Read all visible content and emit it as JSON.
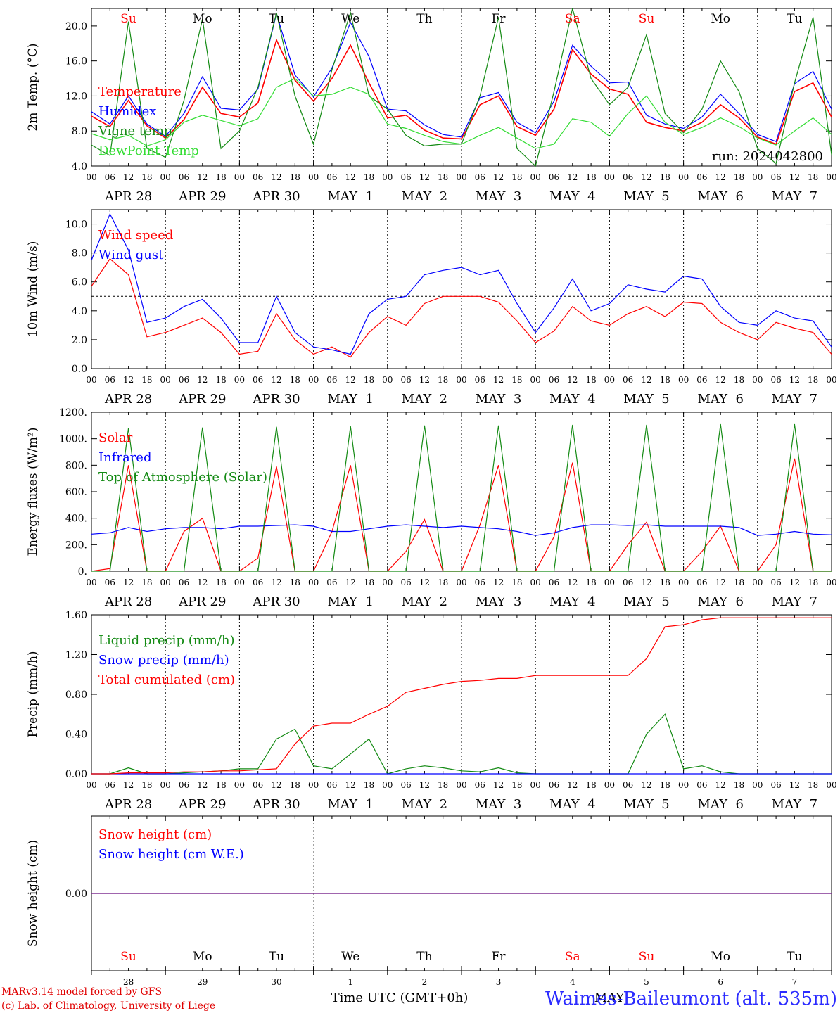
{
  "colors": {
    "temperature": "#ff0000",
    "vigne": "#138a13",
    "humidex": "#0000ff",
    "dewpoint": "#33dd33",
    "weekend": "#ff0000",
    "weekday": "#000000",
    "snow_line": "#7b2a8f"
  },
  "chart_data": [
    {
      "type": "line",
      "ylabel": "2m Temp. (°C)",
      "ylim": [
        4,
        22
      ],
      "yticks": [
        "4.0",
        "8.0",
        "12.0",
        "16.0",
        "20.0"
      ],
      "annotation": "run: 2024042800",
      "day_labels": [
        "Su",
        "Mo",
        "Tu",
        "We",
        "Th",
        "Fr",
        "Sa",
        "Su",
        "Mo",
        "Tu"
      ],
      "x_hours": [
        0,
        6,
        12,
        18,
        24,
        30,
        36,
        42,
        48,
        54,
        60,
        66,
        72,
        78,
        84,
        90,
        96,
        102,
        108,
        114,
        120,
        126,
        132,
        138,
        144,
        150,
        156,
        162,
        168,
        174,
        180,
        186,
        192,
        198,
        204,
        210,
        216,
        222,
        228,
        234,
        240
      ],
      "series": [
        {
          "name": "Temperature",
          "color": "#ff0000",
          "values": [
            9.7,
            8.5,
            11.5,
            8.6,
            7.2,
            9.3,
            13.0,
            10.0,
            9.6,
            11.2,
            18.4,
            13.8,
            11.4,
            14.0,
            17.8,
            13.5,
            9.5,
            9.8,
            8.1,
            7.2,
            7.1,
            11.0,
            12.0,
            8.5,
            7.5,
            10.5,
            17.3,
            14.5,
            12.8,
            12.2,
            9.0,
            8.4,
            8.0,
            9.0,
            11.0,
            9.5,
            7.3,
            6.5,
            12.5,
            13.5,
            9.6
          ]
        },
        {
          "name": "Humidex",
          "color": "#0000ff",
          "values": [
            10.2,
            8.8,
            12.0,
            8.8,
            7.4,
            10.0,
            14.2,
            10.6,
            10.4,
            12.8,
            21.4,
            14.4,
            11.9,
            15.2,
            20.4,
            16.5,
            10.5,
            10.3,
            8.7,
            7.6,
            7.3,
            11.8,
            12.4,
            9.0,
            7.8,
            11.4,
            17.8,
            15.4,
            13.5,
            13.6,
            9.8,
            8.8,
            8.3,
            9.6,
            12.2,
            10.0,
            7.6,
            6.8,
            13.4,
            14.8,
            10.5
          ]
        },
        {
          "name": "Vigne temp",
          "color": "#138a13",
          "values": [
            6.4,
            5.2,
            20.5,
            6.0,
            5.0,
            11.5,
            20.8,
            6.0,
            8.0,
            13.0,
            21.5,
            12.0,
            6.5,
            15.0,
            21.5,
            12.0,
            10.5,
            7.5,
            6.3,
            6.5,
            6.5,
            12.0,
            21.0,
            6.0,
            3.5,
            12.5,
            22.0,
            14.0,
            11.0,
            13.0,
            19.0,
            10.0,
            7.8,
            10.5,
            16.0,
            12.5,
            6.0,
            4.3,
            13.5,
            21.0,
            5.3
          ]
        },
        {
          "name": "DewPoint Temp",
          "color": "#33dd33",
          "values": [
            7.7,
            7.0,
            7.5,
            6.3,
            7.0,
            9.0,
            9.8,
            9.2,
            8.6,
            9.4,
            13.0,
            14.0,
            12.0,
            12.2,
            13.0,
            12.2,
            8.8,
            8.3,
            7.5,
            6.8,
            6.5,
            7.5,
            8.4,
            7.2,
            6.0,
            6.5,
            9.4,
            9.0,
            7.4,
            10.0,
            12.0,
            9.0,
            7.6,
            8.4,
            9.5,
            8.5,
            7.2,
            6.4,
            8.0,
            9.5,
            7.6
          ]
        }
      ]
    },
    {
      "type": "line",
      "ylabel": "10m Wind (m/s)",
      "ylim": [
        0,
        11
      ],
      "yticks": [
        "0.0",
        "2.0",
        "4.0",
        "6.0",
        "8.0",
        "10.0"
      ],
      "reference_line": 5,
      "x_hours": [
        0,
        6,
        12,
        18,
        24,
        30,
        36,
        42,
        48,
        54,
        60,
        66,
        72,
        78,
        84,
        90,
        96,
        102,
        108,
        114,
        120,
        126,
        132,
        138,
        144,
        150,
        156,
        162,
        168,
        174,
        180,
        186,
        192,
        198,
        204,
        210,
        216,
        222,
        228,
        234,
        240
      ],
      "series": [
        {
          "name": "Wind speed",
          "color": "#ff0000",
          "values": [
            5.7,
            7.6,
            6.5,
            2.2,
            2.5,
            3.0,
            3.5,
            2.5,
            1.0,
            1.2,
            3.8,
            2.0,
            1.0,
            1.5,
            0.8,
            2.5,
            3.6,
            3.0,
            4.5,
            5.0,
            5.0,
            5.0,
            4.6,
            3.3,
            1.8,
            2.6,
            4.3,
            3.3,
            3.0,
            3.8,
            4.3,
            3.6,
            4.6,
            4.5,
            3.2,
            2.5,
            2.0,
            3.2,
            2.8,
            2.5,
            1.0
          ]
        },
        {
          "name": "Wind gust",
          "color": "#0000ff",
          "values": [
            7.5,
            10.7,
            8.2,
            3.2,
            3.5,
            4.3,
            4.8,
            3.5,
            1.8,
            1.8,
            5.0,
            2.5,
            1.5,
            1.3,
            1.0,
            3.8,
            4.8,
            5.0,
            6.5,
            6.8,
            7.0,
            6.5,
            6.8,
            4.5,
            2.5,
            4.2,
            6.2,
            4.0,
            4.5,
            5.8,
            5.5,
            5.3,
            6.4,
            6.2,
            4.3,
            3.2,
            3.0,
            4.0,
            3.5,
            3.3,
            1.5
          ]
        }
      ]
    },
    {
      "type": "line",
      "ylabel": "Energy fluxes (W/m²)",
      "ylim": [
        0,
        1200
      ],
      "yticks": [
        "0.",
        "200.",
        "400.",
        "600.",
        "800.",
        "1000.",
        "1200."
      ],
      "x_hours": [
        0,
        6,
        12,
        18,
        24,
        30,
        36,
        42,
        48,
        54,
        60,
        66,
        72,
        78,
        84,
        90,
        96,
        102,
        108,
        114,
        120,
        126,
        132,
        138,
        144,
        150,
        156,
        162,
        168,
        174,
        180,
        186,
        192,
        198,
        204,
        210,
        216,
        222,
        228,
        234,
        240
      ],
      "series": [
        {
          "name": "Solar",
          "color": "#ff0000",
          "values": [
            0,
            20,
            800,
            0,
            0,
            300,
            400,
            0,
            0,
            100,
            790,
            0,
            0,
            300,
            800,
            0,
            0,
            150,
            390,
            0,
            0,
            350,
            800,
            0,
            0,
            260,
            820,
            0,
            0,
            200,
            370,
            0,
            0,
            150,
            340,
            0,
            0,
            200,
            850,
            0,
            0
          ]
        },
        {
          "name": "Infrared",
          "color": "#0000ff",
          "values": [
            280,
            290,
            330,
            300,
            320,
            330,
            330,
            320,
            340,
            340,
            345,
            350,
            340,
            300,
            300,
            320,
            340,
            350,
            340,
            330,
            340,
            330,
            320,
            300,
            270,
            290,
            330,
            350,
            350,
            345,
            350,
            340,
            340,
            340,
            340,
            330,
            270,
            280,
            300,
            280,
            275
          ]
        },
        {
          "name": "Top of Atmosphere (Solar)",
          "color": "#138a13",
          "values": [
            0,
            0,
            1080,
            0,
            0,
            0,
            1085,
            0,
            0,
            0,
            1090,
            0,
            0,
            0,
            1095,
            0,
            0,
            0,
            1100,
            0,
            0,
            0,
            1100,
            0,
            0,
            0,
            1105,
            0,
            0,
            0,
            1105,
            0,
            0,
            0,
            1110,
            0,
            0,
            0,
            1110,
            0,
            0
          ]
        }
      ]
    },
    {
      "type": "line",
      "ylabel": "Precip (mm/h)",
      "ylim": [
        0,
        1.6
      ],
      "yticks": [
        "0.00",
        "0.40",
        "0.80",
        "1.20",
        "1.60"
      ],
      "x_hours": [
        0,
        6,
        12,
        18,
        24,
        30,
        36,
        42,
        48,
        54,
        60,
        66,
        72,
        78,
        84,
        90,
        96,
        102,
        108,
        114,
        120,
        126,
        132,
        138,
        144,
        150,
        156,
        162,
        168,
        174,
        180,
        186,
        192,
        198,
        204,
        210,
        216,
        222,
        228,
        234,
        240
      ],
      "series": [
        {
          "name": "Liquid precip (mm/h)",
          "color": "#138a13",
          "values": [
            0,
            0,
            0.06,
            0,
            0,
            0.01,
            0.02,
            0.03,
            0.05,
            0.05,
            0.35,
            0.45,
            0.08,
            0.05,
            0.2,
            0.35,
            0,
            0.05,
            0.08,
            0.06,
            0.03,
            0.02,
            0.06,
            0.01,
            0,
            0,
            0,
            0,
            0,
            0,
            0.4,
            0.6,
            0.05,
            0.08,
            0.02,
            0,
            0,
            0,
            0,
            0,
            0
          ]
        },
        {
          "name": "Snow precip (mm/h)",
          "color": "#0000ff",
          "values": [
            0,
            0,
            0,
            0,
            0,
            0,
            0,
            0,
            0,
            0,
            0,
            0,
            0,
            0,
            0,
            0,
            0,
            0,
            0,
            0,
            0,
            0,
            0,
            0,
            0,
            0,
            0,
            0,
            0,
            0,
            0,
            0,
            0,
            0,
            0,
            0,
            0,
            0,
            0,
            0,
            0
          ]
        },
        {
          "name": "Total cumulated (cm)",
          "color": "#ff0000",
          "values": [
            0,
            0,
            0.01,
            0.01,
            0.01,
            0.02,
            0.02,
            0.03,
            0.03,
            0.04,
            0.05,
            0.3,
            0.48,
            0.51,
            0.51,
            0.6,
            0.68,
            0.82,
            0.86,
            0.9,
            0.93,
            0.94,
            0.96,
            0.96,
            0.99,
            0.99,
            0.99,
            0.99,
            0.99,
            0.99,
            1.16,
            1.48,
            1.5,
            1.55,
            1.57,
            1.57,
            1.57,
            1.57,
            1.57,
            1.57,
            1.57
          ]
        }
      ]
    },
    {
      "type": "line",
      "ylabel": "Snow height (cm)",
      "ylim": [
        -1,
        1
      ],
      "yticks": [
        "0.00"
      ],
      "x_hours": [
        0,
        240
      ],
      "series": [
        {
          "name": "Snow height (cm)",
          "color": "#ff0000",
          "values": [
            0,
            0
          ]
        },
        {
          "name": "Snow height (cm W.E.)",
          "color": "#0000ff",
          "values": [
            0,
            0
          ]
        }
      ]
    }
  ],
  "x_axis": {
    "hour_labels": [
      "00",
      "06",
      "12",
      "18"
    ],
    "date_labels": [
      "APR 28",
      "APR 29",
      "APR 30",
      "MAY  1",
      "MAY  2",
      "MAY  3",
      "MAY  4",
      "MAY  5",
      "MAY  6",
      "MAY  7"
    ],
    "bottom_day_labels": [
      "Su",
      "Mo",
      "Tu",
      "We",
      "Th",
      "Fr",
      "Sa",
      "Su",
      "Mo",
      "Tu"
    ],
    "bottom_day_numbers": [
      "28",
      "29",
      "30",
      "1",
      "2",
      "3",
      "4",
      "5",
      "6",
      "7"
    ],
    "weekend_index": [
      0,
      6,
      7
    ],
    "month_label": "MAY",
    "title": "Time UTC (GMT+0h)"
  },
  "footer": {
    "credit_line1": "MARv3.14 model forced by GFS",
    "credit_line2": "(c) Lab. of Climatology, University of Liege",
    "station": "Waimes-Baileumont (alt. 535m)"
  }
}
